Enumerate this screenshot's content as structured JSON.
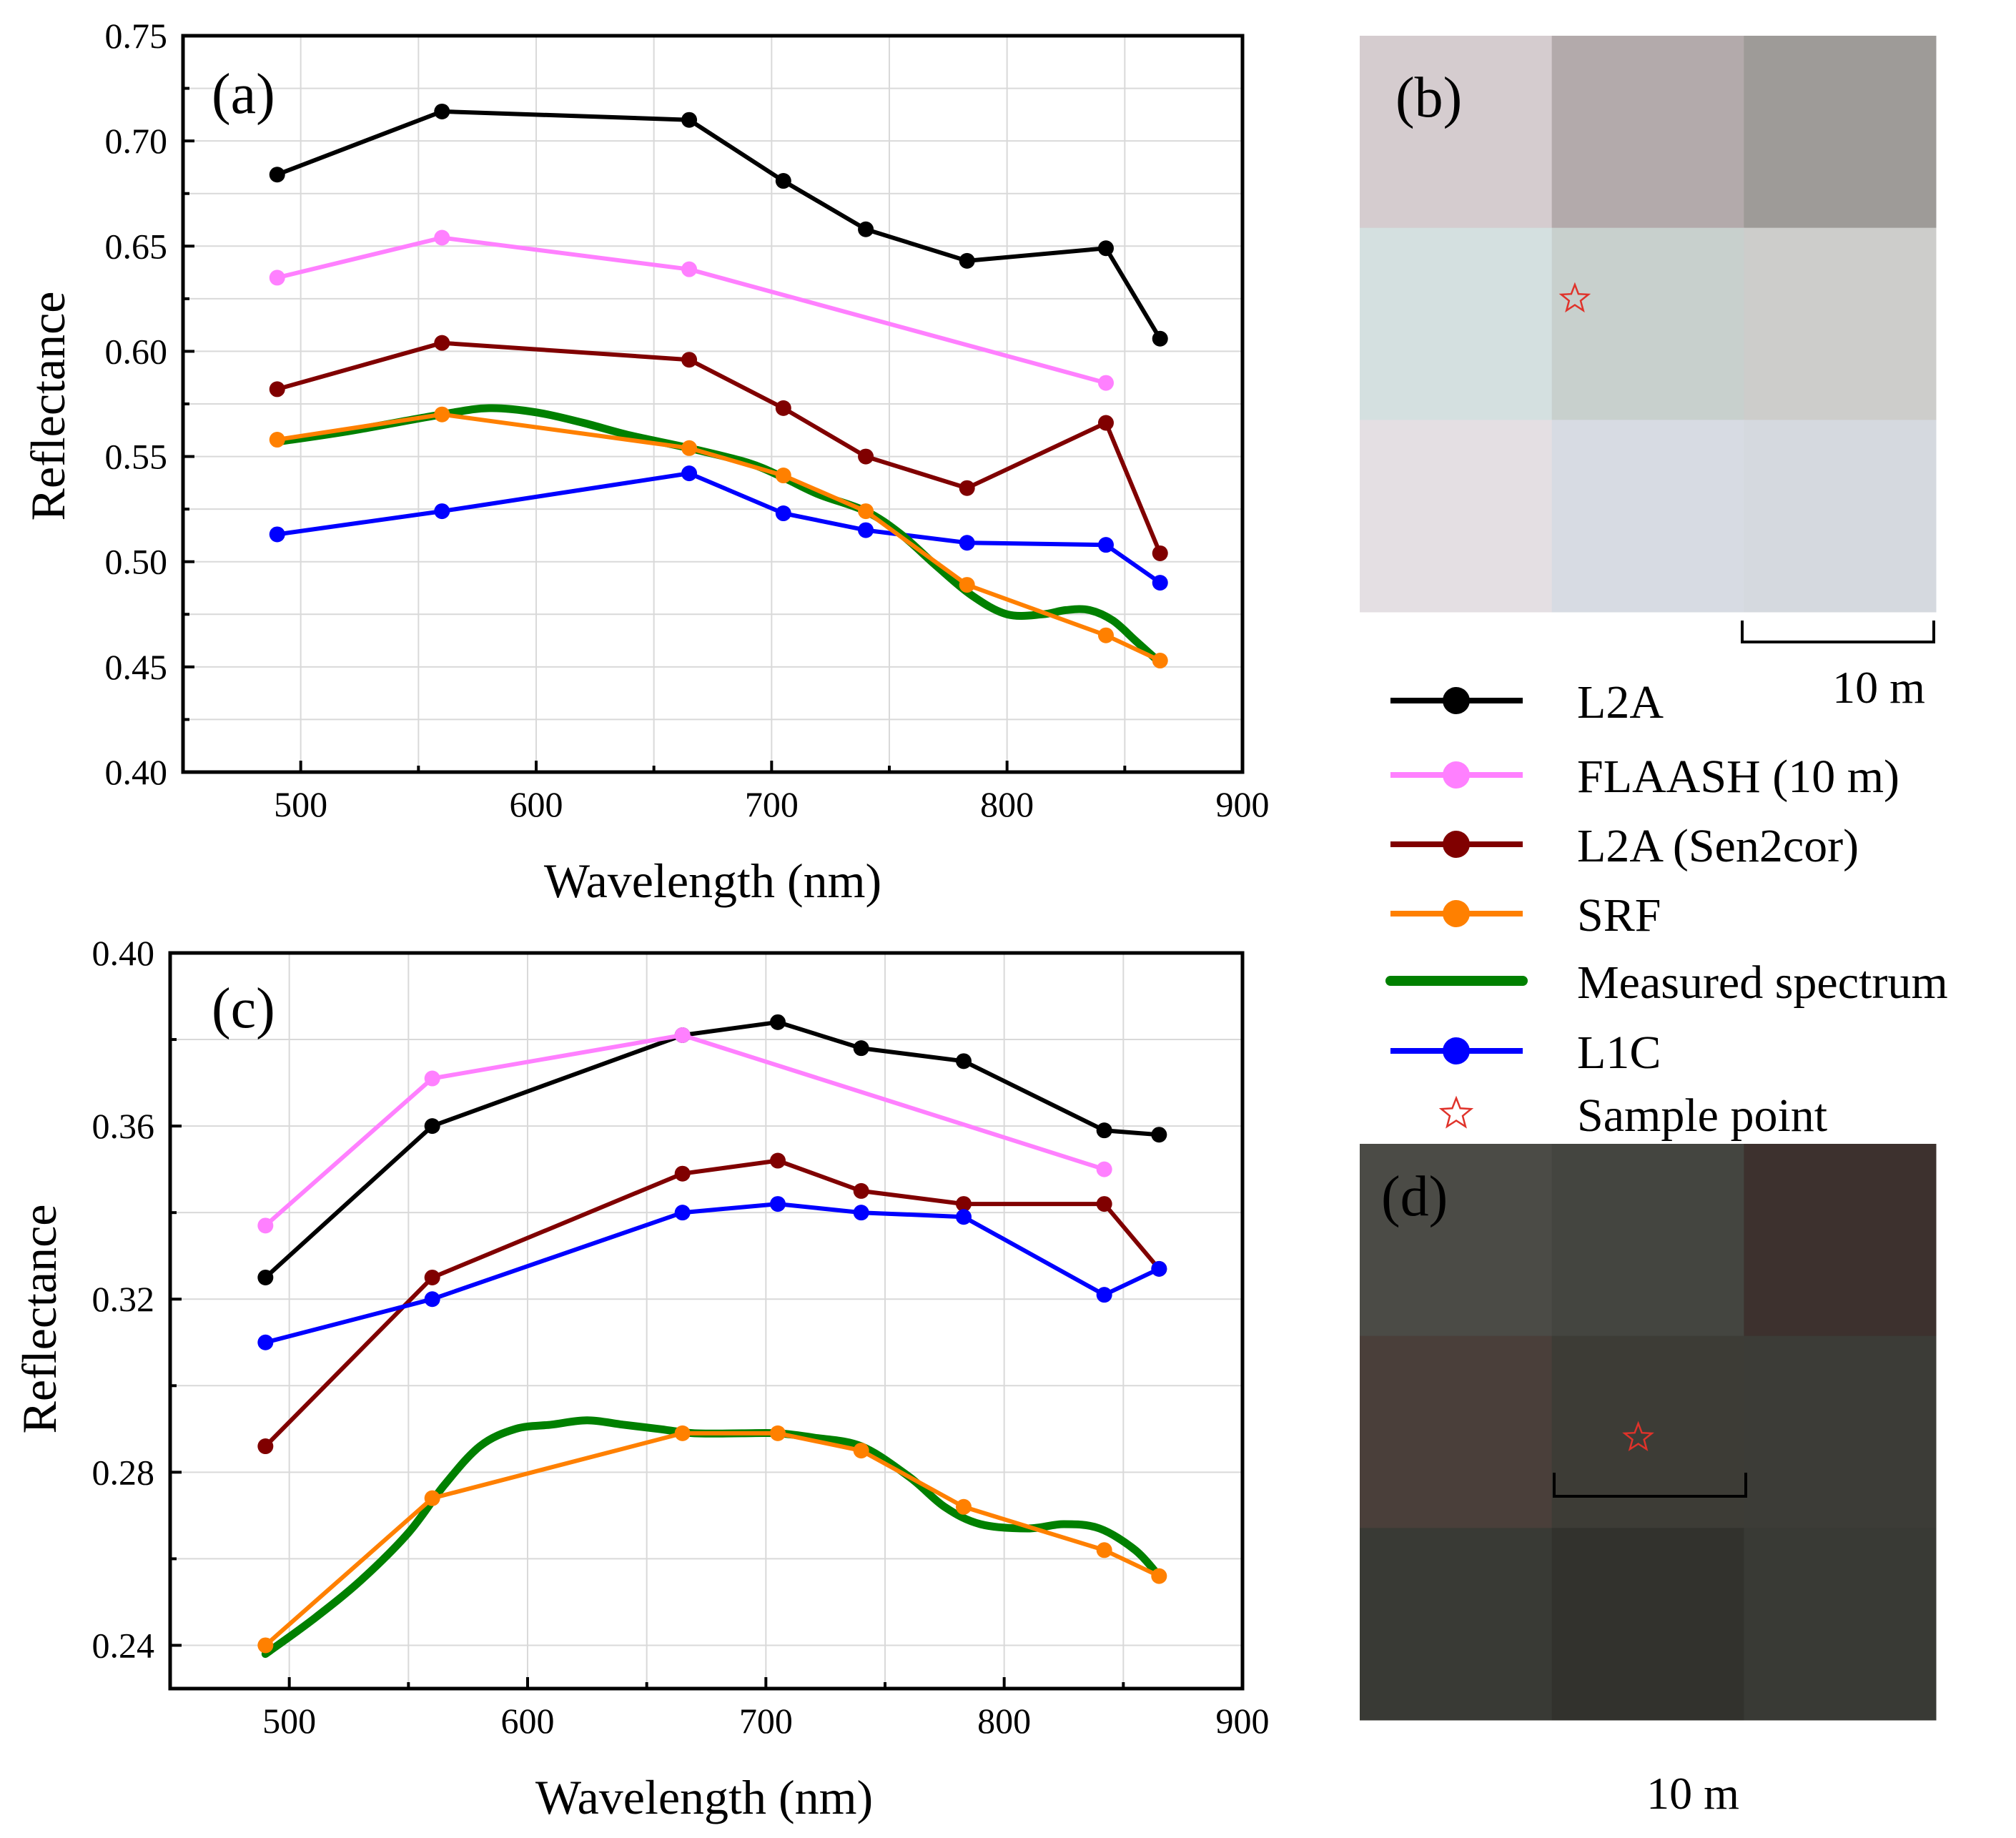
{
  "colors": {
    "L2A": "#000000",
    "FLAASH (10 m)": "#ff80ff",
    "L2A (Sen2cor)": "#800000",
    "SRF": "#ff8000",
    "Measured spectrum": "#008000",
    "L1C": "#0000ff",
    "star": "#e0322a",
    "grid": "#d9d9d9"
  },
  "legend": {
    "items": [
      {
        "key": "L2A",
        "label": "L2A",
        "kind": "marker-line"
      },
      {
        "key": "FLAASH (10 m)",
        "label": "FLAASH (10 m)",
        "kind": "marker-line"
      },
      {
        "key": "L2A (Sen2cor)",
        "label": "L2A (Sen2cor)",
        "kind": "marker-line"
      },
      {
        "key": "SRF",
        "label": "SRF",
        "kind": "marker-line"
      },
      {
        "key": "Measured spectrum",
        "label": "Measured spectrum",
        "kind": "thick-line"
      },
      {
        "key": "L1C",
        "label": "L1C",
        "kind": "marker-line"
      },
      {
        "key": "star",
        "label": "Sample point",
        "kind": "star"
      }
    ]
  },
  "images": {
    "b": {
      "label": "(b)",
      "scale_label": "10 m",
      "pixels": [
        [
          "#d5cccf",
          "#b3aaab",
          "#9e9b98"
        ],
        [
          "#d4e0e0",
          "#c8d0cd",
          "#cdcdcb"
        ],
        [
          "#e4dfe3",
          "#d7dbe3",
          "#d5d9df"
        ]
      ],
      "star": {
        "col": 1.12,
        "row": 1.37
      }
    },
    "d": {
      "label": "(d)",
      "scale_label": "10 m",
      "pixels": [
        [
          "#4b4b46",
          "#444540",
          "#3d312e"
        ],
        [
          "#4a3f3a",
          "#3d3c36",
          "#3c3c37"
        ],
        [
          "#393a35",
          "#32322d",
          "#393a35"
        ]
      ],
      "star": {
        "col": 1.45,
        "row": 1.53
      }
    }
  },
  "chart_data": [
    {
      "panel": "(a)",
      "type": "line",
      "xlabel": "Wavelength (nm)",
      "ylabel": "Reflectance",
      "xlim": [
        450,
        900
      ],
      "ylim": [
        0.4,
        0.75
      ],
      "xticks": [
        500,
        600,
        700,
        800,
        900
      ],
      "yticks": [
        0.4,
        0.45,
        0.5,
        0.55,
        0.6,
        0.65,
        0.7,
        0.75
      ],
      "ytick_labels": [
        "0.40",
        "0.45",
        "0.50",
        "0.55",
        "0.60",
        "0.65",
        "0.70",
        "0.75"
      ],
      "series": [
        {
          "name": "L2A",
          "x": [
            490,
            560,
            665,
            705,
            740,
            783,
            842,
            865
          ],
          "values": [
            0.684,
            0.714,
            0.71,
            0.681,
            0.658,
            0.643,
            0.649,
            0.606
          ]
        },
        {
          "name": "FLAASH (10 m)",
          "x": [
            490,
            560,
            665,
            842
          ],
          "values": [
            0.635,
            0.654,
            0.639,
            0.585
          ]
        },
        {
          "name": "L2A (Sen2cor)",
          "x": [
            490,
            560,
            665,
            705,
            740,
            783,
            842,
            865
          ],
          "values": [
            0.582,
            0.604,
            0.596,
            0.573,
            0.55,
            0.535,
            0.566,
            0.504
          ]
        },
        {
          "name": "L1C",
          "x": [
            490,
            560,
            665,
            705,
            740,
            783,
            842,
            865
          ],
          "values": [
            0.513,
            0.524,
            0.542,
            0.523,
            0.515,
            0.509,
            0.508,
            0.49
          ]
        },
        {
          "name": "Measured spectrum",
          "x": [
            490,
            520,
            560,
            580,
            600,
            620,
            640,
            665,
            690,
            705,
            720,
            740,
            755,
            770,
            785,
            800,
            815,
            825,
            835,
            845,
            855,
            865
          ],
          "values": [
            0.557,
            0.562,
            0.57,
            0.573,
            0.571,
            0.566,
            0.56,
            0.554,
            0.547,
            0.54,
            0.532,
            0.524,
            0.513,
            0.498,
            0.484,
            0.475,
            0.475,
            0.477,
            0.477,
            0.472,
            0.462,
            0.452
          ]
        },
        {
          "name": "SRF",
          "x": [
            490,
            560,
            665,
            705,
            740,
            783,
            842,
            865
          ],
          "values": [
            0.558,
            0.57,
            0.554,
            0.541,
            0.524,
            0.489,
            0.465,
            0.453
          ]
        }
      ]
    },
    {
      "panel": "(c)",
      "type": "line",
      "xlabel": "Wavelength (nm)",
      "ylabel": "Reflectance",
      "xlim": [
        450,
        900
      ],
      "ylim": [
        0.23,
        0.4
      ],
      "xticks": [
        500,
        600,
        700,
        800,
        900
      ],
      "yticks": [
        0.24,
        0.28,
        0.32,
        0.36,
        0.4
      ],
      "ytick_labels": [
        "0.24",
        "0.28",
        "0.32",
        "0.36",
        "0.40"
      ],
      "series": [
        {
          "name": "L2A",
          "x": [
            490,
            560,
            665,
            705,
            740,
            783,
            842,
            865
          ],
          "values": [
            0.325,
            0.36,
            0.381,
            0.384,
            0.378,
            0.375,
            0.359,
            0.358
          ]
        },
        {
          "name": "FLAASH (10 m)",
          "x": [
            490,
            560,
            665,
            842
          ],
          "values": [
            0.337,
            0.371,
            0.381,
            0.35
          ]
        },
        {
          "name": "L2A (Sen2cor)",
          "x": [
            490,
            560,
            665,
            705,
            740,
            783,
            842,
            865
          ],
          "values": [
            0.286,
            0.325,
            0.349,
            0.352,
            0.345,
            0.342,
            0.342,
            0.327
          ]
        },
        {
          "name": "L1C",
          "x": [
            490,
            560,
            665,
            705,
            740,
            783,
            842,
            865
          ],
          "values": [
            0.31,
            0.32,
            0.34,
            0.342,
            0.34,
            0.339,
            0.321,
            0.327
          ]
        },
        {
          "name": "Measured spectrum",
          "x": [
            490,
            510,
            530,
            550,
            565,
            580,
            595,
            610,
            625,
            640,
            655,
            670,
            690,
            705,
            720,
            740,
            760,
            775,
            790,
            810,
            825,
            840,
            855,
            865
          ],
          "values": [
            0.238,
            0.246,
            0.255,
            0.266,
            0.277,
            0.286,
            0.29,
            0.291,
            0.292,
            0.291,
            0.29,
            0.289,
            0.289,
            0.289,
            0.288,
            0.286,
            0.279,
            0.272,
            0.268,
            0.267,
            0.268,
            0.267,
            0.262,
            0.256
          ]
        },
        {
          "name": "SRF",
          "x": [
            490,
            560,
            665,
            705,
            740,
            783,
            842,
            865
          ],
          "values": [
            0.24,
            0.274,
            0.289,
            0.289,
            0.285,
            0.272,
            0.262,
            0.256
          ]
        }
      ]
    }
  ]
}
